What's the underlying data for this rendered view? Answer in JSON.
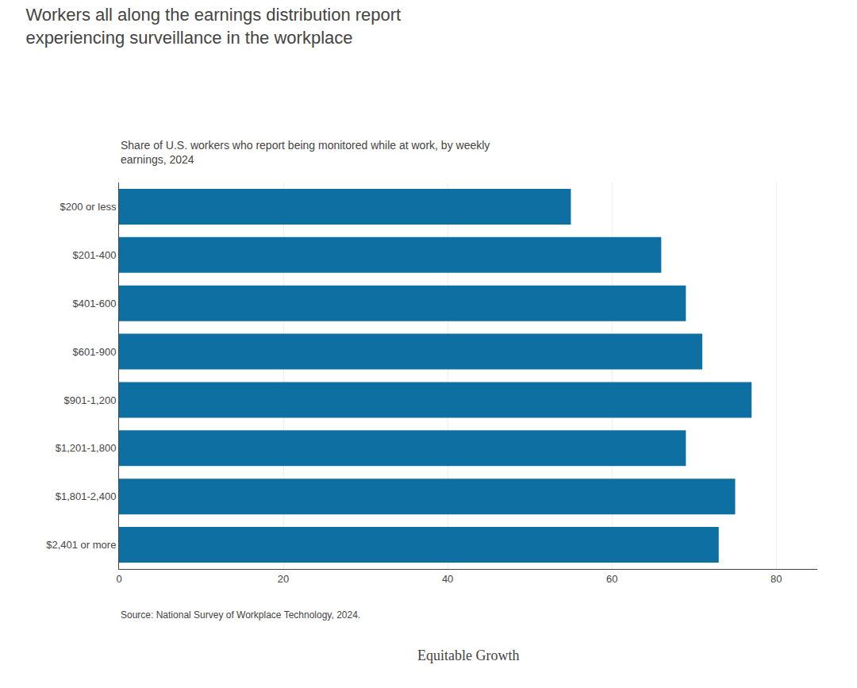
{
  "chart_data": {
    "type": "bar",
    "orientation": "horizontal",
    "title": "Workers all along the earnings distribution report\nexperiencing surveillance in the workplace",
    "subtitle": "Share of U.S. workers who report being monitored while at work, by weekly\nearnings, 2024",
    "categories": [
      "$200 or less",
      "$201-400",
      "$401-600",
      "$601-900",
      "$901-1,200",
      "$1,201-1,800",
      "$1,801-2,400",
      "$2,401 or more"
    ],
    "values": [
      55,
      66,
      69,
      71,
      77,
      69,
      75,
      73
    ],
    "color": "#0e6fa3",
    "xlim": [
      0,
      85
    ],
    "xticks": [
      0,
      20,
      40,
      60,
      80
    ],
    "grid": true,
    "annotations": [
      "Source: National Survey of Workplace Technology, 2024.",
      "Equitable Growth"
    ]
  }
}
